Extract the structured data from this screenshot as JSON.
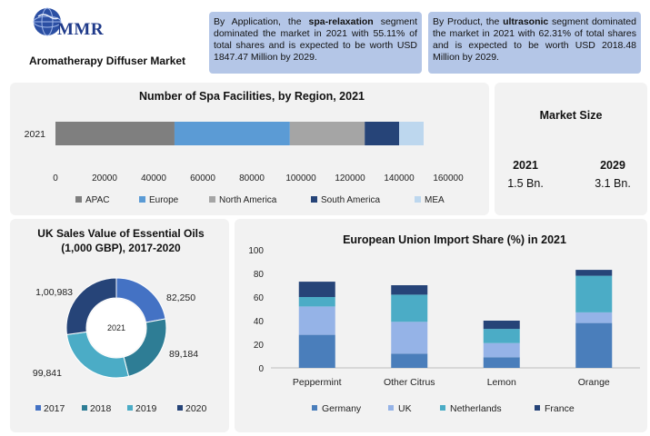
{
  "header": {
    "logo_text": "MMR",
    "title": "Aromatherapy Diffuser Market",
    "callout_application": {
      "pre": "By Application, the ",
      "highlight": "spa-relaxation",
      "post": " segment dominated the market in 2021 with 55.11% of total shares and is expected to be worth USD 1847.47 Million by 2029."
    },
    "callout_product": {
      "pre": "By Product, the ",
      "highlight": "ultrasonic",
      "post": " segment dominated the market in 2021 with 62.31% of total shares and is expected to be worth USD 2018.48 Million by 2029."
    }
  },
  "market_size": {
    "title": "Market Size",
    "items": [
      {
        "year": "2021",
        "value": "1.5 Bn."
      },
      {
        "year": "2029",
        "value": "3.1 Bn."
      }
    ]
  },
  "colors": {
    "panel_bg": "#f2f2f2",
    "callout_bg": "#b4c6e7",
    "logo_blue": "#1f3a8a"
  },
  "chart_data": [
    {
      "type": "bar",
      "orientation": "horizontal",
      "stacked": true,
      "title": "Number of Spa Facilities, by Region, 2021",
      "categories": [
        "2021"
      ],
      "series": [
        {
          "name": "APAC",
          "values": [
            48500
          ],
          "color": "#7f7f7f"
        },
        {
          "name": "Europe",
          "values": [
            47000
          ],
          "color": "#5b9bd5"
        },
        {
          "name": "North America",
          "values": [
            30500
          ],
          "color": "#a5a5a5"
        },
        {
          "name": "South America",
          "values": [
            14000
          ],
          "color": "#264478"
        },
        {
          "name": "MEA",
          "values": [
            10000
          ],
          "color": "#bdd7ee"
        }
      ],
      "xlim": [
        0,
        160000
      ],
      "xticks": [
        "0",
        "20000",
        "40000",
        "60000",
        "80000",
        "100000",
        "120000",
        "140000",
        "160000"
      ],
      "grid": false,
      "legend": "bottom"
    },
    {
      "type": "pie",
      "donut": true,
      "title": "UK Sales Value of Essential Oils (1,000 GBP), 2017-2020",
      "center_label": "2021",
      "labels": [
        "2017",
        "2018",
        "2019",
        "2020"
      ],
      "values": [
        82250,
        89184,
        99841,
        100983
      ],
      "value_labels": [
        "82,250",
        "89,184",
        "99,841",
        "1,00,983"
      ],
      "colors": [
        "#4472c4",
        "#2e7d95",
        "#4bacc6",
        "#264478"
      ],
      "legend": "bottom"
    },
    {
      "type": "bar",
      "stacked": true,
      "title": "European Union Import Share (%) in 2021",
      "categories": [
        "Peppermint",
        "Other Citrus",
        "Lemon",
        "Orange"
      ],
      "series": [
        {
          "name": "Germany",
          "values": [
            28,
            12,
            9,
            38
          ],
          "color": "#4a7ebb"
        },
        {
          "name": "UK",
          "values": [
            24,
            27,
            12,
            9
          ],
          "color": "#95b3e7"
        },
        {
          "name": "Netherlands",
          "values": [
            8,
            23,
            12,
            31
          ],
          "color": "#4bacc6"
        },
        {
          "name": "France",
          "values": [
            13,
            8,
            7,
            5
          ],
          "color": "#264478"
        }
      ],
      "ylim": [
        0,
        100
      ],
      "yticks": [
        "0",
        "20",
        "40",
        "60",
        "80",
        "100"
      ],
      "grid": false,
      "legend": "bottom"
    }
  ]
}
